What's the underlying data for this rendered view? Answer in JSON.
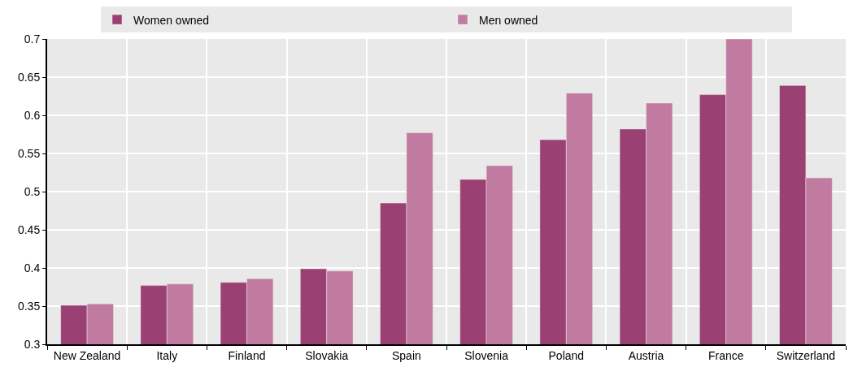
{
  "chart_data": {
    "type": "bar",
    "categories": [
      "New Zealand",
      "Italy",
      "Finland",
      "Slovakia",
      "Spain",
      "Slovenia",
      "Poland",
      "Austria",
      "France",
      "Switzerland"
    ],
    "series": [
      {
        "name": "Women owned",
        "color": "#9b4072",
        "values": [
          0.351,
          0.377,
          0.381,
          0.399,
          0.485,
          0.516,
          0.568,
          0.582,
          0.627,
          0.639
        ]
      },
      {
        "name": "Men owned",
        "color": "#c17aa0",
        "values": [
          0.353,
          0.379,
          0.386,
          0.396,
          0.577,
          0.534,
          0.629,
          0.616,
          0.7,
          0.518
        ]
      }
    ],
    "ylim": [
      0.3,
      0.7
    ],
    "yticks": [
      0.3,
      0.35,
      0.4,
      0.45,
      0.5,
      0.55,
      0.6,
      0.65,
      0.7
    ],
    "grid": true,
    "legend": "top"
  }
}
